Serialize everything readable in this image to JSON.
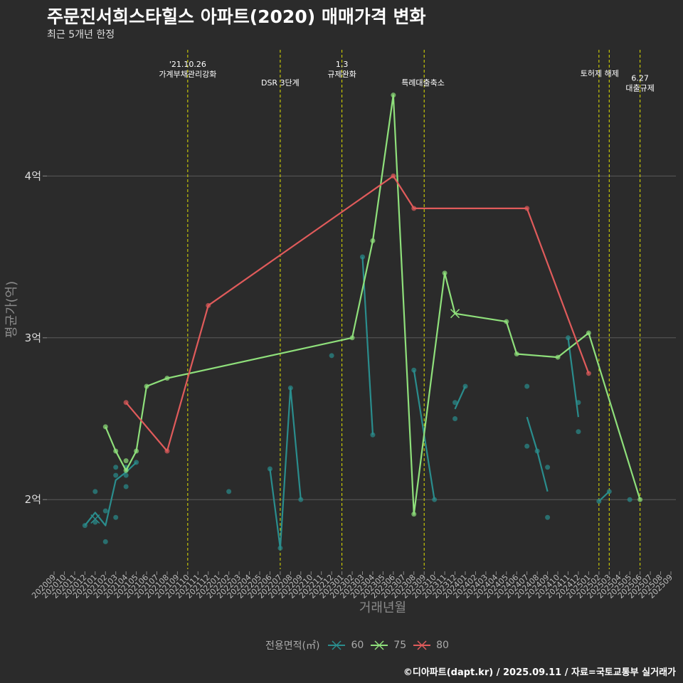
{
  "title": "주문진서희스타힐스 아파트(2020) 매매가격 변화",
  "subtitle": "최근 5개년 한정",
  "caption": "©디아파트(dapt.kr) / 2025.09.11 / 자료=국토교통부 실거래가",
  "legend": {
    "title": "전용면적(㎡)",
    "items": [
      {
        "label": "60",
        "color": "#2a8d8d"
      },
      {
        "label": "75",
        "color": "#8fe07b"
      },
      {
        "label": "80",
        "color": "#e05b5b"
      }
    ]
  },
  "chart_data": {
    "type": "line",
    "xlabel": "거래년월",
    "ylabel": "평균가(억)",
    "x_categories": [
      "202009",
      "202010",
      "202011",
      "202012",
      "202101",
      "202102",
      "202103",
      "202104",
      "202105",
      "202106",
      "202107",
      "202108",
      "202109",
      "202110",
      "202111",
      "202112",
      "202201",
      "202202",
      "202203",
      "202204",
      "202205",
      "202206",
      "202207",
      "202208",
      "202209",
      "202210",
      "202211",
      "202212",
      "202301",
      "202302",
      "202303",
      "202304",
      "202305",
      "202306",
      "202307",
      "202308",
      "202309",
      "202310",
      "202311",
      "202312",
      "202401",
      "202402",
      "202403",
      "202404",
      "202405",
      "202406",
      "202407",
      "202408",
      "202409",
      "202410",
      "202411",
      "202412",
      "202501",
      "202502",
      "202503",
      "202504",
      "202505",
      "202506",
      "202507",
      "202508",
      "202509"
    ],
    "y_ticks": [
      {
        "value": 2,
        "label": "2억"
      },
      {
        "value": 3,
        "label": "3억"
      },
      {
        "value": 4,
        "label": "4억"
      }
    ],
    "ylim": [
      1.57,
      4.78
    ],
    "grid": true,
    "series": [
      {
        "name": "60",
        "color": "#2a8d8d",
        "segments": [
          [
            [
              "202012",
              1.84
            ],
            [
              "202101",
              1.92
            ],
            [
              "202102",
              1.84
            ],
            [
              "202103",
              2.12
            ],
            [
              "202104",
              2.17
            ],
            [
              "202105",
              2.23
            ]
          ],
          [
            [
              "202206",
              2.19
            ],
            [
              "202207",
              1.7
            ],
            [
              "202208",
              2.69
            ],
            [
              "202209",
              2.0
            ]
          ],
          [
            [
              "202303",
              3.5
            ],
            [
              "202304",
              2.4
            ]
          ],
          [
            [
              "202308",
              2.8
            ],
            [
              "202310",
              2.0
            ]
          ],
          [
            [
              "202312",
              2.56
            ],
            [
              "202401",
              2.7
            ]
          ],
          [
            [
              "202407",
              2.51
            ],
            [
              "202408",
              2.3
            ],
            [
              "202409",
              2.05
            ]
          ],
          [
            [
              "202411",
              3.0
            ],
            [
              "202412",
              2.51
            ]
          ],
          [
            [
              "202502",
              1.99
            ],
            [
              "202503",
              2.05
            ]
          ]
        ],
        "points": [
          [
            "202012",
            1.84
          ],
          [
            "202101",
            2.05
          ],
          [
            "202101",
            1.86
          ],
          [
            "202102",
            1.93
          ],
          [
            "202102",
            1.74
          ],
          [
            "202103",
            2.2
          ],
          [
            "202103",
            2.15
          ],
          [
            "202103",
            1.89
          ],
          [
            "202104",
            2.2
          ],
          [
            "202104",
            2.15
          ],
          [
            "202104",
            2.08
          ],
          [
            "202105",
            2.23
          ],
          [
            "202202",
            2.05
          ],
          [
            "202206",
            2.19
          ],
          [
            "202207",
            1.7
          ],
          [
            "202208",
            2.69
          ],
          [
            "202209",
            2.0
          ],
          [
            "202212",
            2.89
          ],
          [
            "202303",
            3.5
          ],
          [
            "202304",
            2.4
          ],
          [
            "202308",
            2.8
          ],
          [
            "202310",
            2.0
          ],
          [
            "202312",
            2.6
          ],
          [
            "202312",
            2.5
          ],
          [
            "202401",
            2.7
          ],
          [
            "202407",
            2.7
          ],
          [
            "202407",
            2.33
          ],
          [
            "202408",
            2.3
          ],
          [
            "202409",
            2.2
          ],
          [
            "202409",
            1.89
          ],
          [
            "202411",
            3.0
          ],
          [
            "202412",
            2.6
          ],
          [
            "202412",
            2.42
          ],
          [
            "202502",
            1.99
          ],
          [
            "202503",
            2.05
          ],
          [
            "202505",
            2.0
          ]
        ],
        "x_markers": [
          [
            "202101",
            1.88
          ]
        ]
      },
      {
        "name": "75",
        "color": "#8fe07b",
        "segments": [
          [
            [
              "202102",
              2.45
            ],
            [
              "202103",
              2.3
            ],
            [
              "202104",
              2.18
            ],
            [
              "202105",
              2.3
            ],
            [
              "202106",
              2.7
            ],
            [
              "202108",
              2.75
            ],
            [
              "202302",
              3.0
            ],
            [
              "202304",
              3.6
            ],
            [
              "202306",
              4.5
            ],
            [
              "202308",
              1.91
            ],
            [
              "202311",
              3.4
            ],
            [
              "202312",
              3.15
            ],
            [
              "202405",
              3.1
            ],
            [
              "202406",
              2.9
            ],
            [
              "202410",
              2.88
            ],
            [
              "202501",
              3.03
            ],
            [
              "202506",
              2.0
            ]
          ]
        ],
        "points": [
          [
            "202102",
            2.45
          ],
          [
            "202103",
            2.3
          ],
          [
            "202104",
            2.18
          ],
          [
            "202104",
            2.24
          ],
          [
            "202105",
            2.3
          ],
          [
            "202106",
            2.7
          ],
          [
            "202108",
            2.75
          ],
          [
            "202302",
            3.0
          ],
          [
            "202304",
            3.6
          ],
          [
            "202306",
            4.5
          ],
          [
            "202308",
            1.91
          ],
          [
            "202311",
            3.4
          ],
          [
            "202405",
            3.1
          ],
          [
            "202406",
            2.9
          ],
          [
            "202410",
            2.88
          ],
          [
            "202501",
            3.03
          ],
          [
            "202506",
            2.0
          ]
        ],
        "x_markers": [
          [
            "202312",
            3.15
          ]
        ]
      },
      {
        "name": "80",
        "color": "#e05b5b",
        "segments": [
          [
            [
              "202104",
              2.6
            ],
            [
              "202108",
              2.3
            ],
            [
              "202112",
              3.2
            ],
            [
              "202306",
              4.0
            ],
            [
              "202308",
              3.8
            ],
            [
              "202407",
              3.8
            ],
            [
              "202501",
              2.78
            ]
          ]
        ],
        "points": [
          [
            "202104",
            2.6
          ],
          [
            "202108",
            2.3
          ],
          [
            "202112",
            3.2
          ],
          [
            "202306",
            4.0
          ],
          [
            "202308",
            3.8
          ],
          [
            "202407",
            3.8
          ],
          [
            "202501",
            2.78
          ]
        ],
        "x_markers": []
      }
    ],
    "vlines": [
      "202110",
      "202207",
      "202301",
      "202309",
      "202502",
      "202503",
      "202506"
    ],
    "annotations": [
      {
        "x": "202110",
        "lines": [
          "'21.10.26",
          "가계부채관리강화"
        ],
        "row": 1
      },
      {
        "x": "202207",
        "lines": [
          "DSR 3단계"
        ],
        "row": 3
      },
      {
        "x": "202301",
        "lines": [
          "1.3",
          "규제완화"
        ],
        "row": 1
      },
      {
        "x": "202309",
        "lines": [
          "특례대출축소"
        ],
        "row": 3,
        "anchor": "start"
      },
      {
        "x": "202502",
        "lines": [
          "토허제 해제"
        ],
        "row": 2,
        "anchor": "end"
      },
      {
        "x": "202506",
        "lines": [
          "6.27",
          "대출규제"
        ],
        "row": 2.5
      }
    ]
  }
}
